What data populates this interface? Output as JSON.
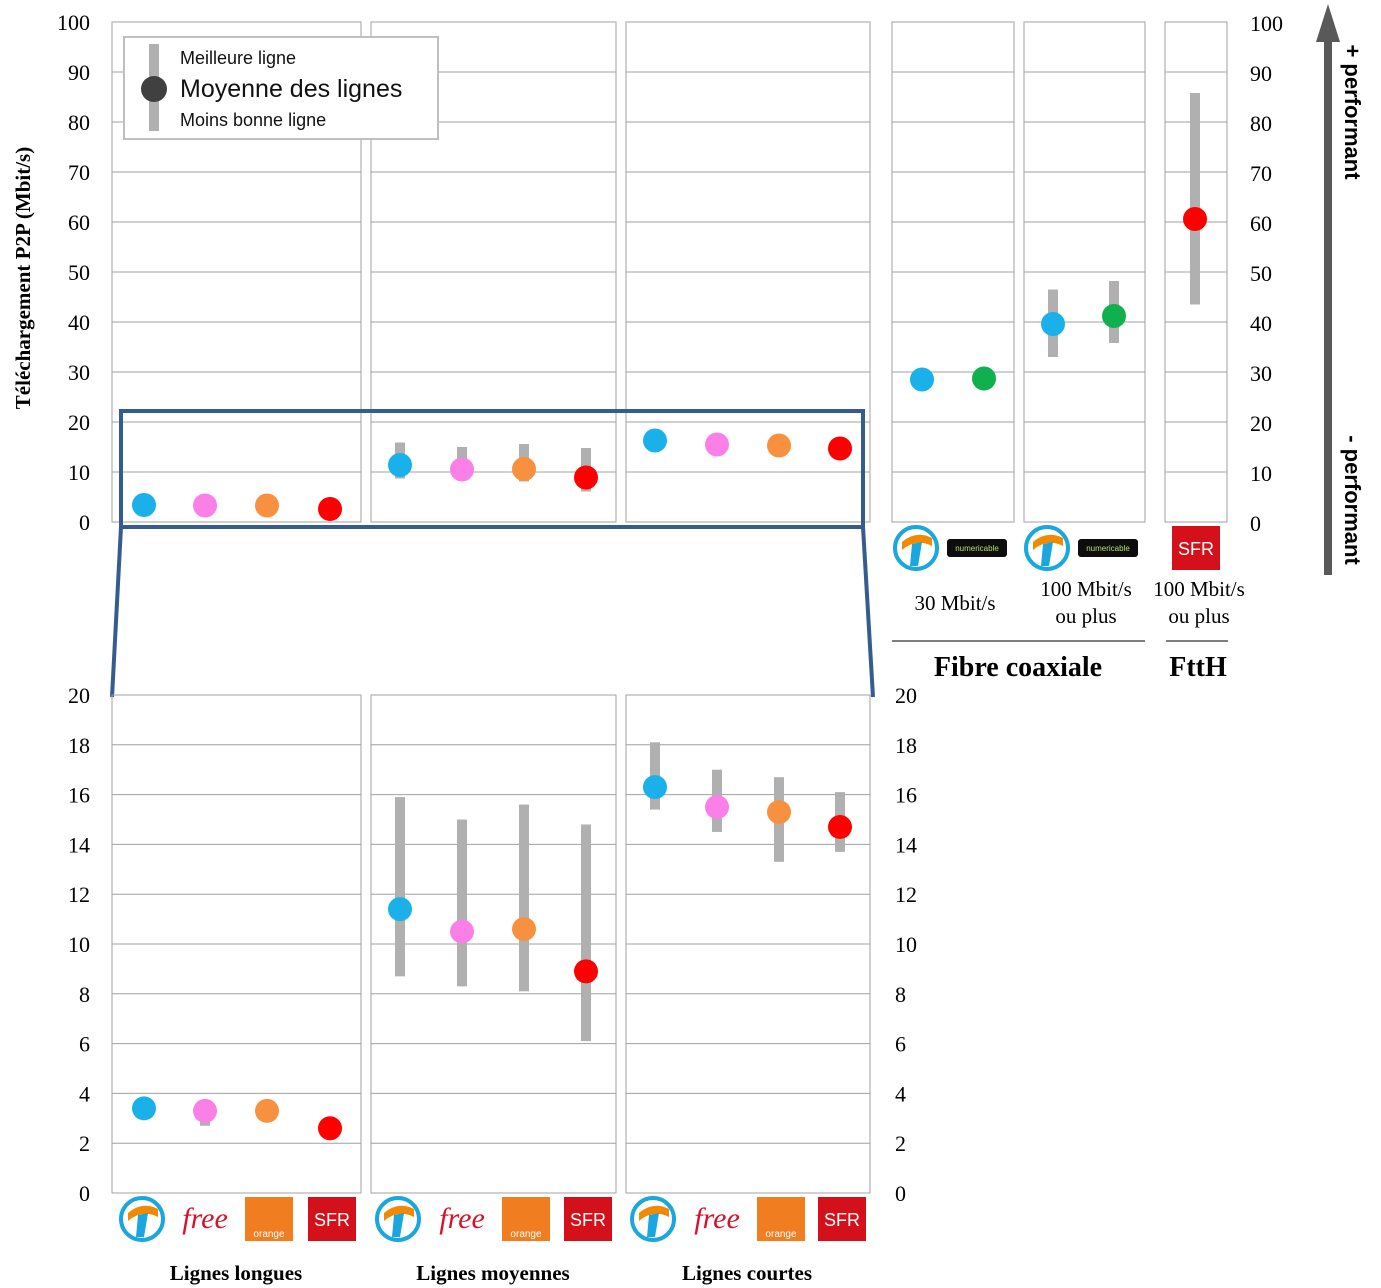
{
  "chart_data": {
    "type": "scatter",
    "y_axis_label": "Téléchargement P2P (Mbit/s)",
    "legend": {
      "best": "Meilleure ligne",
      "mean": "Moyenne des lignes",
      "worst": "Moins bonne ligne"
    },
    "arrow_labels": {
      "up": "+ performant",
      "down": "- performant"
    },
    "operators": {
      "bouygues": {
        "label": "Bouygues Telecom",
        "color": "#1ab1ea"
      },
      "free": {
        "label": "free",
        "color": "#fa7fe6"
      },
      "orange": {
        "label": "orange",
        "color": "#f8913f"
      },
      "sfr": {
        "label": "SFR",
        "color": "#fe0000"
      },
      "numericable": {
        "label": "numericable",
        "color": "#10b04e"
      }
    },
    "colors": {
      "range_bar": "#b0b0b0",
      "zoom_frame": "#365b8e",
      "grid": "#a0a0a0",
      "arrow": "#595959"
    },
    "top_chart": {
      "ylim": [
        0,
        100
      ],
      "ticks": [
        0,
        10,
        20,
        30,
        40,
        50,
        60,
        70,
        80,
        90,
        100
      ],
      "panels": [
        {
          "name": "lignes-longues",
          "points": [
            {
              "op": "bouygues",
              "mean": 3.4,
              "min": 3.4,
              "max": 3.8
            },
            {
              "op": "free",
              "mean": 3.3,
              "min": 2.7,
              "max": 3.3
            },
            {
              "op": "orange",
              "mean": 3.3,
              "min": 3.3,
              "max": 3.3
            },
            {
              "op": "sfr",
              "mean": 2.6,
              "min": 2.6,
              "max": 2.6
            }
          ]
        },
        {
          "name": "lignes-moyennes",
          "points": [
            {
              "op": "bouygues",
              "mean": 11.4,
              "min": 8.7,
              "max": 15.9
            },
            {
              "op": "free",
              "mean": 10.5,
              "min": 8.3,
              "max": 15.0
            },
            {
              "op": "orange",
              "mean": 10.6,
              "min": 8.1,
              "max": 15.6
            },
            {
              "op": "sfr",
              "mean": 8.9,
              "min": 6.1,
              "max": 14.8
            }
          ]
        },
        {
          "name": "lignes-courtes",
          "points": [
            {
              "op": "bouygues",
              "mean": 16.3,
              "min": 15.4,
              "max": 18.1
            },
            {
              "op": "free",
              "mean": 15.5,
              "min": 14.5,
              "max": 17.0
            },
            {
              "op": "orange",
              "mean": 15.3,
              "min": 13.3,
              "max": 16.7
            },
            {
              "op": "sfr",
              "mean": 14.7,
              "min": 13.7,
              "max": 16.1
            }
          ]
        },
        {
          "name": "coax-30",
          "points": [
            {
              "op": "bouygues",
              "mean": 28.5,
              "min": 28.5,
              "max": 28.5
            },
            {
              "op": "numericable",
              "mean": 28.7,
              "min": 28.7,
              "max": 28.7
            }
          ]
        },
        {
          "name": "coax-100",
          "points": [
            {
              "op": "bouygues",
              "mean": 39.6,
              "min": 33.0,
              "max": 46.5
            },
            {
              "op": "numericable",
              "mean": 41.2,
              "min": 35.8,
              "max": 48.2
            }
          ]
        },
        {
          "name": "ftth-100",
          "points": [
            {
              "op": "sfr",
              "mean": 60.6,
              "min": 43.5,
              "max": 85.8
            }
          ]
        }
      ],
      "speed_labels": [
        {
          "line1": "30 Mbit/s",
          "line2": ""
        },
        {
          "line1": "100 Mbit/s",
          "line2": "ou plus"
        },
        {
          "line1": "100 Mbit/s",
          "line2": "ou plus"
        }
      ],
      "group_labels": [
        "Fibre coaxiale",
        "FttH"
      ]
    },
    "bottom_chart": {
      "ylim": [
        0,
        20
      ],
      "ticks": [
        0,
        2,
        4,
        6,
        8,
        10,
        12,
        14,
        16,
        18,
        20
      ],
      "category_labels": [
        "Lignes longues",
        "Lignes moyennes",
        "Lignes courtes"
      ]
    }
  }
}
